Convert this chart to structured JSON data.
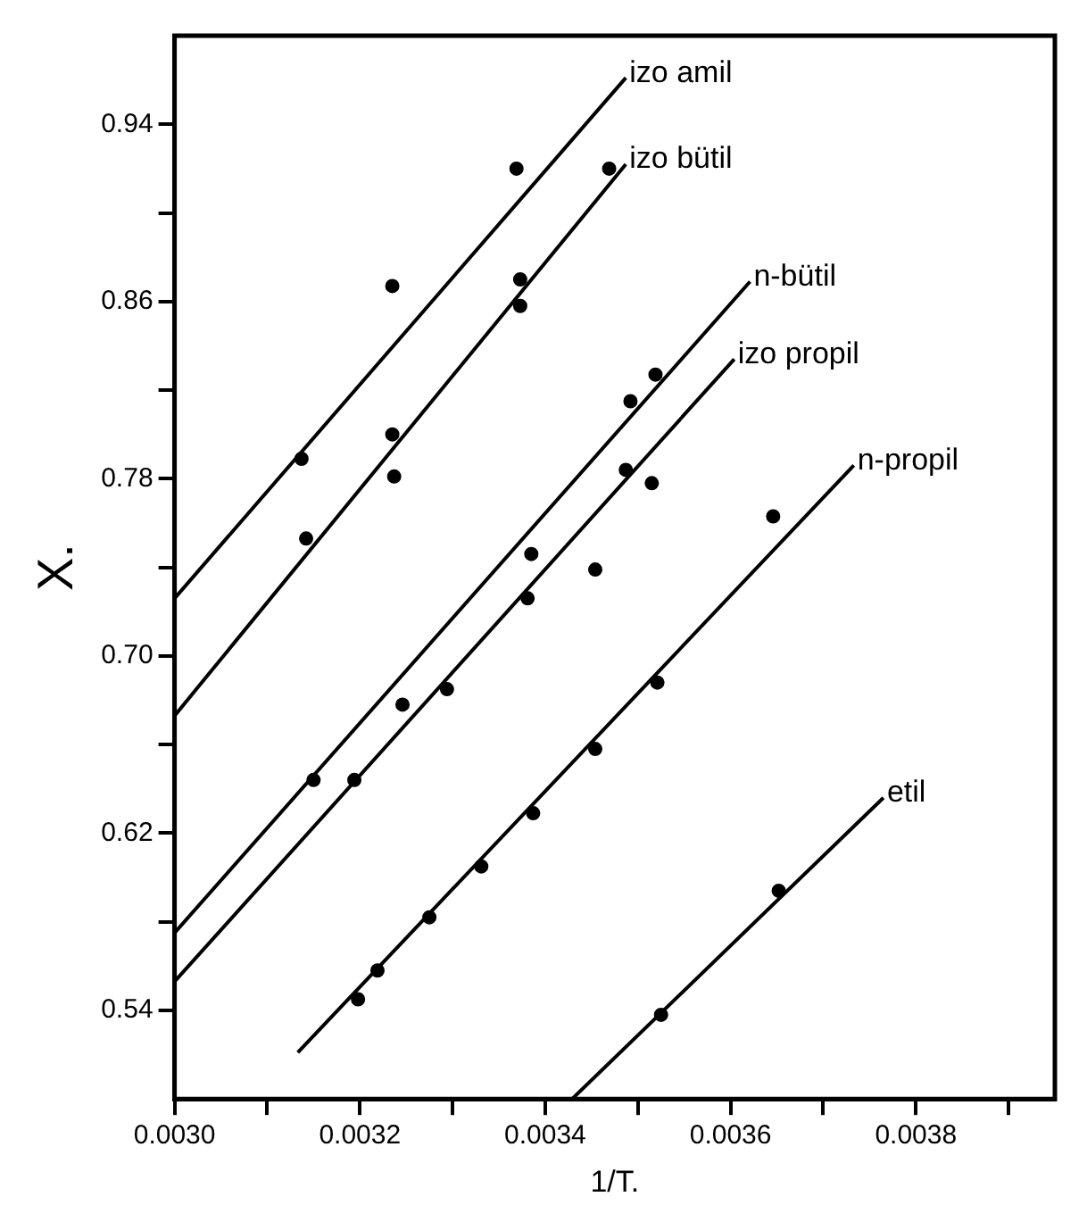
{
  "chart_data": {
    "type": "scatter",
    "xlabel": "1/T.",
    "ylabel": "X.",
    "xlim": [
      0.003,
      0.00395
    ],
    "ylim": [
      0.5,
      0.98
    ],
    "xticks": [
      {
        "value": 0.003,
        "label": "0.0030"
      },
      {
        "value": 0.0031,
        "label": null
      },
      0.0032,
      {
        "value": 0.0033,
        "label": null
      },
      0.0034,
      {
        "value": 0.0035,
        "label": null
      },
      0.0036,
      {
        "value": 0.0037,
        "label": null
      },
      0.0038,
      {
        "value": 0.0039,
        "label": null
      }
    ],
    "yticks": [
      0.54,
      {
        "value": 0.58,
        "label": null
      },
      0.62,
      {
        "value": 0.66,
        "label": null
      },
      {
        "value": 0.7,
        "label": "0.70"
      },
      {
        "value": 0.74,
        "label": null
      },
      0.78,
      {
        "value": 0.82,
        "label": null
      },
      0.86,
      {
        "value": 0.9,
        "label": null
      },
      0.94
    ],
    "grid": false,
    "legend": false,
    "marker": "circle",
    "series": [
      {
        "type": "line",
        "name": "izo amil",
        "color": "#000000",
        "marker": "none",
        "x": [
          0.003,
          0.003487
        ],
        "values": [
          0.726,
          0.961
        ]
      },
      {
        "type": "scatter",
        "color": "#000000",
        "x": [
          0.003137,
          0.003235,
          0.003369
        ],
        "values": [
          0.789,
          0.867,
          0.92
        ]
      },
      {
        "type": "line",
        "name": "izo bütil",
        "color": "#000000",
        "marker": "none",
        "x": [
          0.003,
          0.003487
        ],
        "values": [
          0.673,
          0.922
        ]
      },
      {
        "type": "scatter",
        "color": "#000000",
        "x": [
          0.003142,
          0.003235,
          0.003237,
          0.003373,
          0.003373,
          0.003469
        ],
        "values": [
          0.753,
          0.8,
          0.781,
          0.87,
          0.858,
          0.92
        ]
      },
      {
        "type": "line",
        "name": "n-bütil",
        "color": "#000000",
        "marker": "none",
        "x": [
          0.003,
          0.003621
        ],
        "values": [
          0.575,
          0.869
        ]
      },
      {
        "type": "scatter",
        "color": "#000000",
        "x": [
          0.00315,
          0.003246,
          0.003385,
          0.003492,
          0.003519
        ],
        "values": [
          0.644,
          0.678,
          0.746,
          0.815,
          0.827
        ]
      },
      {
        "type": "line",
        "name": "izo propil",
        "color": "#000000",
        "marker": "none",
        "x": [
          0.003,
          0.003604
        ],
        "values": [
          0.553,
          0.834
        ]
      },
      {
        "type": "scatter",
        "color": "#000000",
        "x": [
          0.003194,
          0.003294,
          0.003381,
          0.003454,
          0.003487,
          0.003515
        ],
        "values": [
          0.644,
          0.685,
          0.726,
          0.739,
          0.784,
          0.778
        ]
      },
      {
        "type": "line",
        "name": "n-propil",
        "color": "#000000",
        "marker": "none",
        "x": [
          0.003133,
          0.003733
        ],
        "values": [
          0.521,
          0.786
        ]
      },
      {
        "type": "scatter",
        "color": "#000000",
        "x": [
          0.003198,
          0.003219,
          0.003275,
          0.003331,
          0.003387,
          0.003454,
          0.003521,
          0.003646
        ],
        "values": [
          0.545,
          0.558,
          0.582,
          0.605,
          0.629,
          0.658,
          0.688,
          0.763
        ]
      },
      {
        "type": "line",
        "name": "etil",
        "color": "#000000",
        "marker": "none",
        "x": [
          0.003429,
          0.003765
        ],
        "values": [
          0.5,
          0.636
        ]
      },
      {
        "type": "scatter",
        "color": "#000000",
        "x": [
          0.003525,
          0.003652
        ],
        "values": [
          0.538,
          0.594
        ]
      }
    ]
  }
}
